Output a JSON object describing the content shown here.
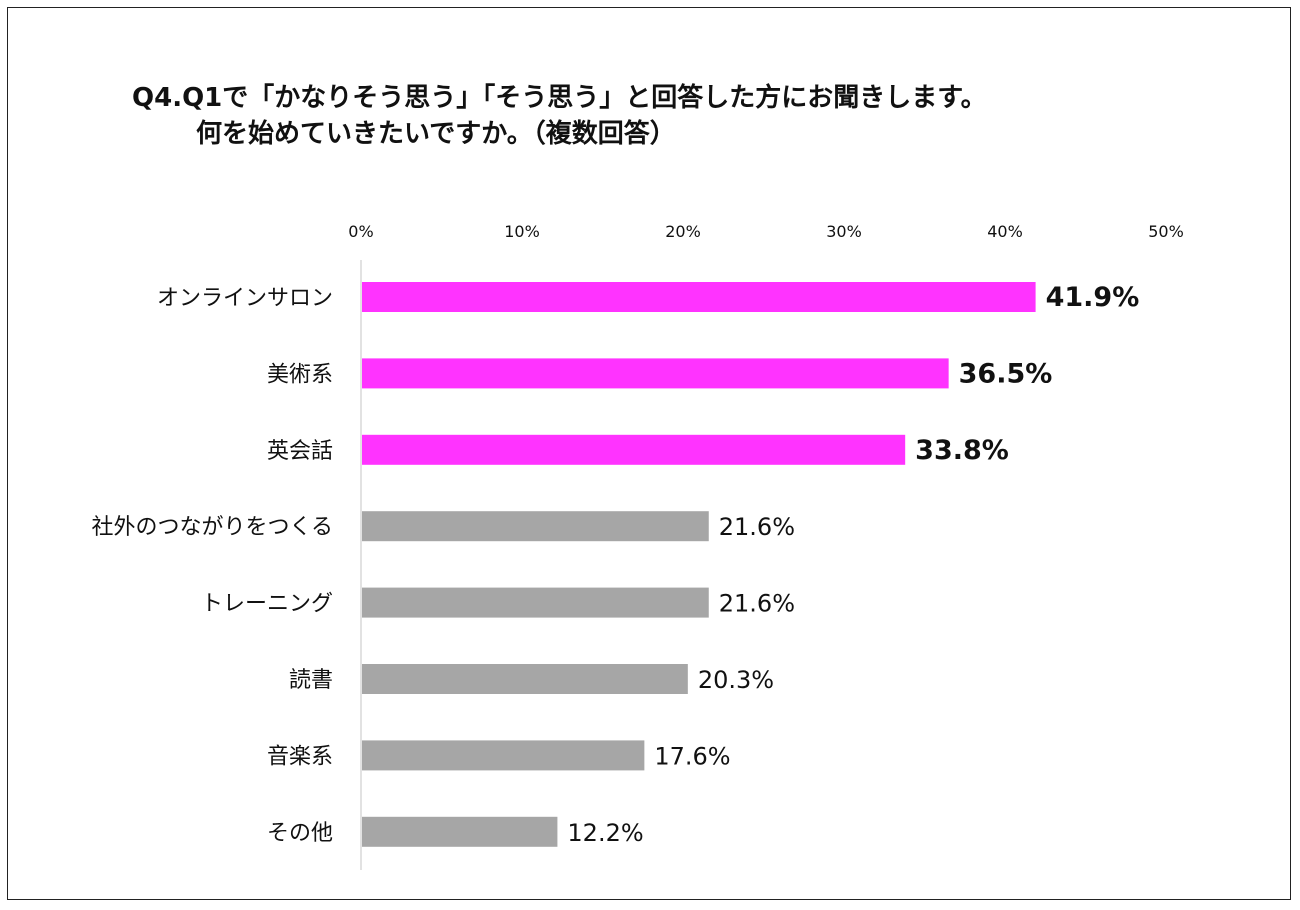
{
  "title": {
    "line1": "Q4.Q1で「かなりそう思う」「そう思う」と回答した方にお聞きします。",
    "line2": "何を始めていきたいですか。（複数回答）"
  },
  "colors": {
    "highlight": "#FF33FF",
    "normal": "#A6A6A6",
    "axis": "#D9D9D9",
    "text": "#111111"
  },
  "chart_data": {
    "type": "bar",
    "orientation": "horizontal",
    "categories": [
      "オンラインサロン",
      "美術系",
      "英会話",
      "社外のつながりをつくる",
      "トレーニング",
      "読書",
      "音楽系",
      "その他"
    ],
    "values": [
      41.9,
      36.5,
      33.8,
      21.6,
      21.6,
      20.3,
      17.6,
      12.2
    ],
    "value_labels": [
      "41.9%",
      "36.5%",
      "33.8%",
      "21.6%",
      "21.6%",
      "20.3%",
      "17.6%",
      "12.2%"
    ],
    "highlighted": [
      true,
      true,
      true,
      false,
      false,
      false,
      false,
      false
    ],
    "xlim": [
      0,
      50
    ],
    "ticks": [
      "0%",
      "10%",
      "20%",
      "30%",
      "40%",
      "50%"
    ],
    "tick_values": [
      0,
      10,
      20,
      30,
      40,
      50
    ],
    "axis_position": "top",
    "grid": false,
    "legend": false
  }
}
